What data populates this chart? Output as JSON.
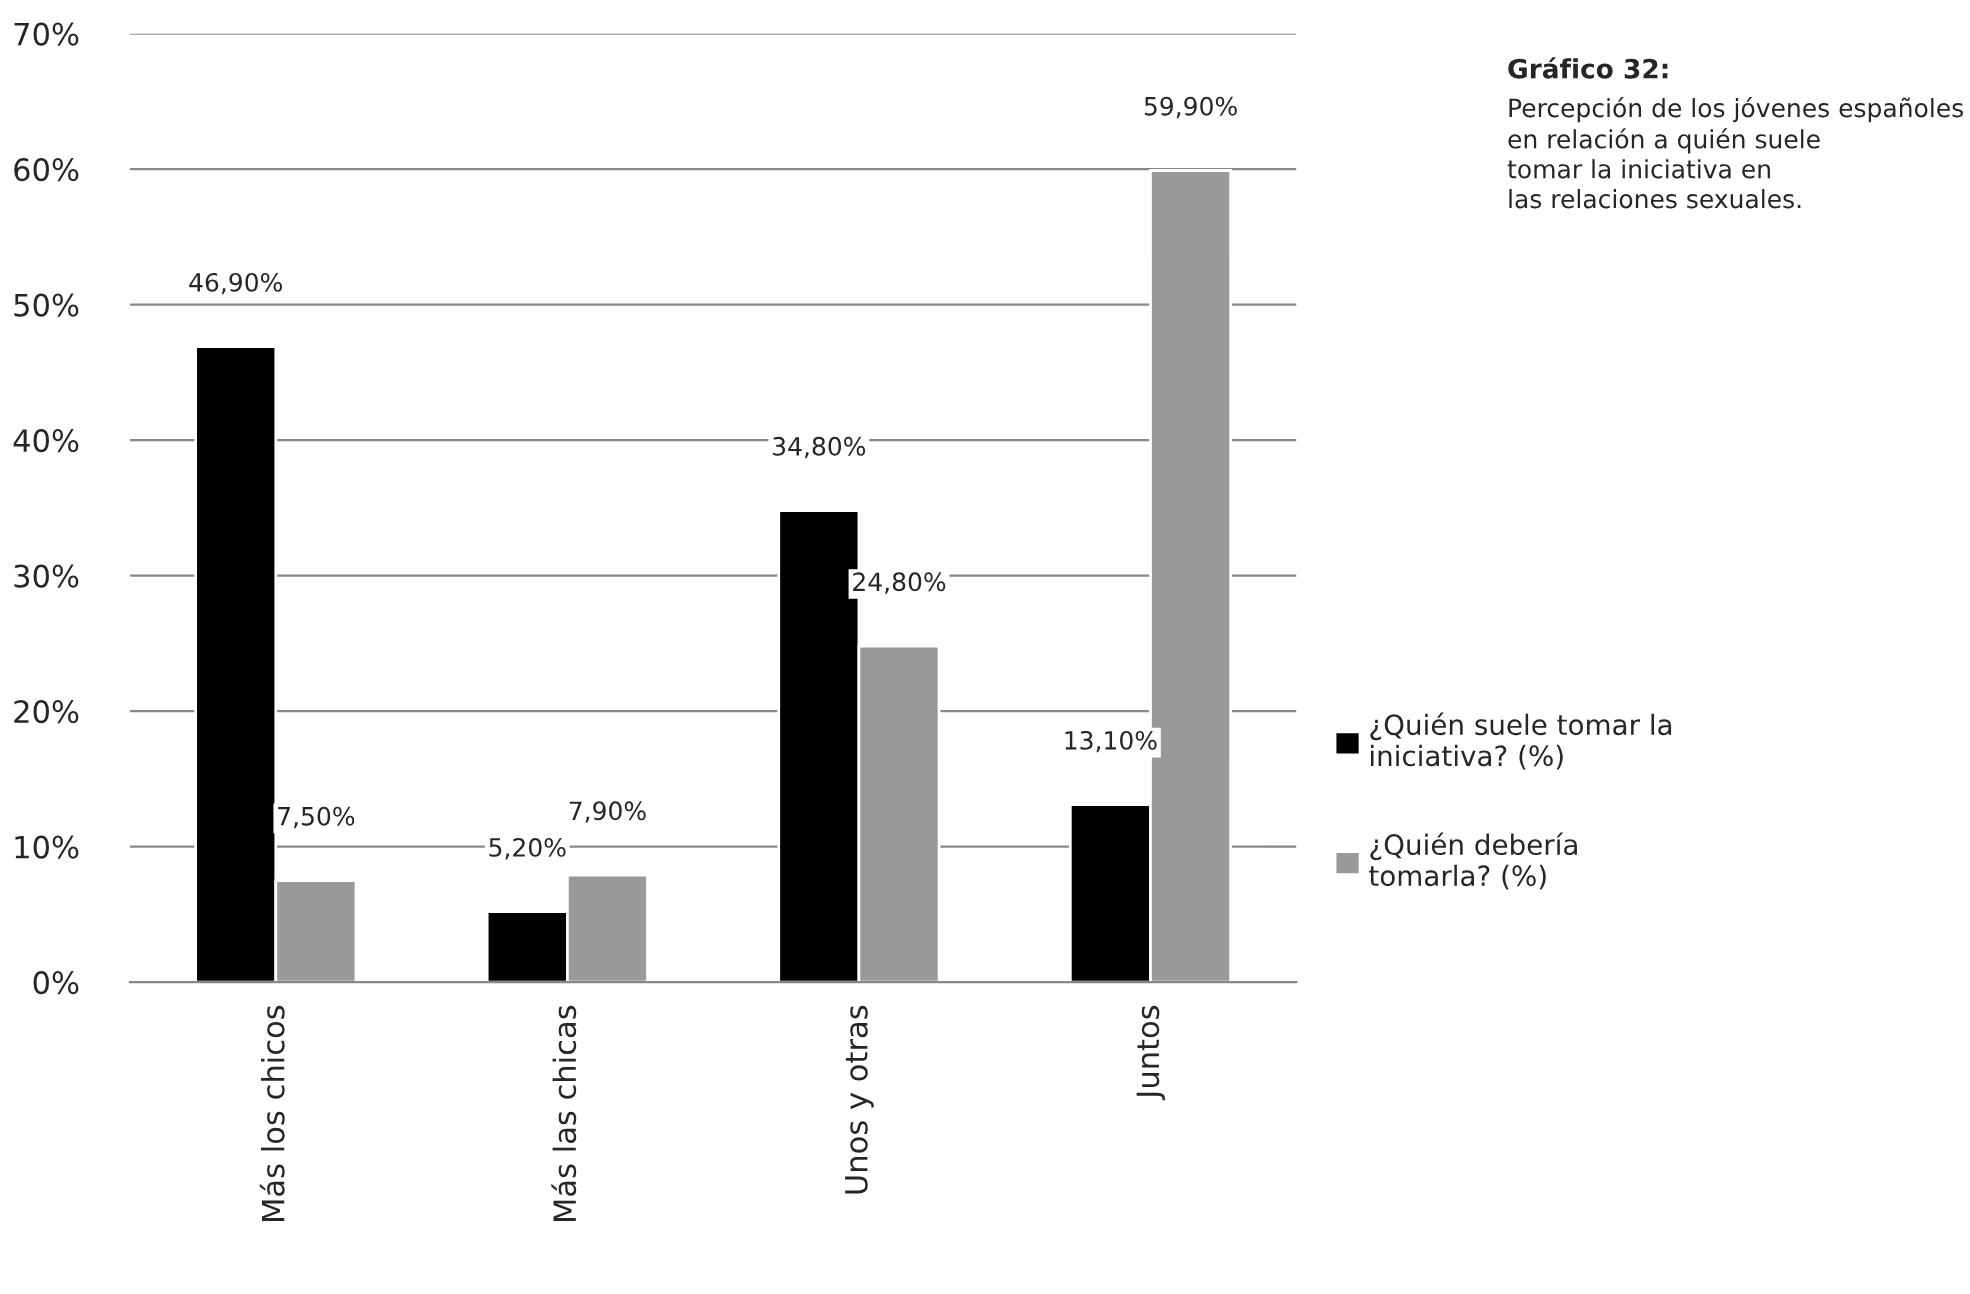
{
  "chart_data": {
    "type": "bar",
    "title": "Gráfico 32:",
    "subtitle": "Percepción de los jóvenes españoles\nen relación a quién suele\ntomar la iniciativa en\nlas relaciones sexuales.",
    "categories": [
      "Más los chicos",
      "Más las chicas",
      "Unos y otras",
      "Juntos"
    ],
    "series": [
      {
        "name": "¿Quién suele tomar la\niniciativa? (%)",
        "color": "#000000",
        "values": [
          46.9,
          5.2,
          34.8,
          13.1
        ],
        "value_labels": [
          "46,90%",
          "5,20%",
          "34,80%",
          "13,10%"
        ]
      },
      {
        "name": "¿Quién debería\ntomarla? (%)",
        "color": "#999999",
        "values": [
          7.5,
          7.9,
          24.8,
          59.9
        ],
        "value_labels": [
          "7,50%",
          "7,90%",
          "24,80%",
          "59,90%"
        ]
      }
    ],
    "ylim": [
      0,
      70
    ],
    "yticks": [
      {
        "value": 0,
        "label": "0%"
      },
      {
        "value": 10,
        "label": "10%"
      },
      {
        "value": 20,
        "label": "20%"
      },
      {
        "value": 30,
        "label": "30%"
      },
      {
        "value": 40,
        "label": "40%"
      },
      {
        "value": 50,
        "label": "50%"
      },
      {
        "value": 60,
        "label": "60%"
      },
      {
        "value": 70,
        "label": "70%"
      }
    ],
    "grid": "y",
    "legend": "right"
  }
}
